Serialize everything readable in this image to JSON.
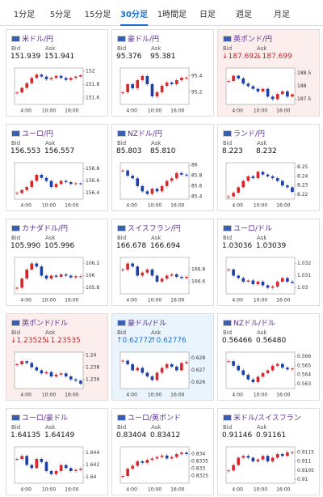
{
  "tabs": [
    "1分足",
    "5分足",
    "15分足",
    "30分足",
    "1時間足",
    "日足",
    "週足",
    "月足"
  ],
  "active_tab": 3,
  "bid_label": "Bid",
  "ask_label": "Ask",
  "time_ticks": [
    "4:00",
    "10:00",
    "16:00"
  ],
  "cards": [
    {
      "name": "米ドル/円",
      "bid": "151.939",
      "ask": "151.941",
      "trend": "none",
      "ylim": [
        151.5,
        152.05
      ],
      "yticks": [
        152,
        151.8,
        151.6
      ],
      "closes": [
        151.68,
        151.75,
        151.82,
        151.9,
        151.95,
        151.92,
        151.88,
        151.9,
        151.93,
        151.9,
        151.87,
        151.9,
        151.92,
        151.94
      ]
    },
    {
      "name": "豪ドル/円",
      "bid": "95.376",
      "ask": "95.381",
      "trend": "none",
      "ylim": [
        95.05,
        95.5
      ],
      "yticks": [
        95.4,
        95.2
      ],
      "closes": [
        95.2,
        95.3,
        95.25,
        95.35,
        95.4,
        95.3,
        95.15,
        95.2,
        95.28,
        95.32,
        95.3,
        95.35,
        95.38,
        95.38
      ]
    },
    {
      "name": "英ポンド/円",
      "bid": "187.692",
      "ask": "187.699",
      "trend": "down",
      "ylim": [
        187.3,
        188.7
      ],
      "yticks": [
        188.5,
        188,
        187.5
      ],
      "closes": [
        188.2,
        188.4,
        188.3,
        188.1,
        188.0,
        187.9,
        187.8,
        187.9,
        187.6,
        187.5,
        187.7,
        187.8,
        187.6,
        187.69
      ]
    },
    {
      "name": "ユーロ/円",
      "bid": "156.553",
      "ask": "156.557",
      "trend": "none",
      "ylim": [
        156.3,
        156.9
      ],
      "yticks": [
        156.8,
        156.6,
        156.4
      ],
      "closes": [
        156.4,
        156.45,
        156.5,
        156.6,
        156.7,
        156.65,
        156.6,
        156.5,
        156.55,
        156.6,
        156.58,
        156.55,
        156.56,
        156.55
      ]
    },
    {
      "name": "NZドル/円",
      "bid": "85.803",
      "ask": "85.810",
      "trend": "none",
      "ylim": [
        85.35,
        86.05
      ],
      "yticks": [
        86,
        85.8,
        85.6,
        85.4
      ],
      "closes": [
        85.9,
        85.8,
        85.75,
        85.6,
        85.5,
        85.45,
        85.55,
        85.5,
        85.6,
        85.7,
        85.75,
        85.85,
        85.82,
        85.81
      ]
    },
    {
      "name": "ランド/円",
      "bid": "8.223",
      "ask": "8.232",
      "trend": "none",
      "ylim": [
        8.215,
        8.255
      ],
      "yticks": [
        8.25,
        8.24,
        8.23,
        8.22
      ],
      "closes": [
        8.218,
        8.222,
        8.228,
        8.235,
        8.24,
        8.238,
        8.245,
        8.242,
        8.24,
        8.238,
        8.235,
        8.23,
        8.228,
        8.223
      ]
    },
    {
      "name": "カナダドル/円",
      "bid": "105.990",
      "ask": "105.996",
      "trend": "none",
      "ylim": [
        105.7,
        106.3
      ],
      "yticks": [
        106.2,
        106,
        105.8
      ],
      "closes": [
        105.8,
        105.95,
        106.1,
        106.2,
        106.15,
        106.0,
        105.95,
        106.0,
        105.98,
        106.02,
        106.0,
        105.97,
        105.99,
        105.99
      ]
    },
    {
      "name": "スイスフラン/円",
      "bid": "166.678",
      "ask": "166.694",
      "trend": "none",
      "ylim": [
        166.4,
        167
      ],
      "yticks": [
        166.8,
        166.6
      ],
      "closes": [
        166.8,
        166.9,
        166.85,
        166.7,
        166.75,
        166.8,
        166.7,
        166.6,
        166.65,
        166.7,
        166.72,
        166.68,
        166.66,
        166.68
      ]
    },
    {
      "name": "ユーロ/ドル",
      "bid": "1.03036",
      "ask": "1.03039",
      "trend": "none",
      "ylim": [
        1.0295,
        1.0325
      ],
      "yticks": [
        1.032,
        1.031,
        1.03
      ],
      "closes": [
        1.0315,
        1.031,
        1.0308,
        1.0305,
        1.0306,
        1.0303,
        1.0305,
        1.0302,
        1.03,
        1.0301,
        1.0305,
        1.0308,
        1.0305,
        1.0304
      ]
    },
    {
      "name": "英ポンド/ドル",
      "bid": "1.23525",
      "ask": "1.23535",
      "trend": "down",
      "ylim": [
        1.2345,
        1.2405
      ],
      "yticks": [
        1.24,
        1.238,
        1.236
      ],
      "closes": [
        1.2385,
        1.239,
        1.2387,
        1.238,
        1.2375,
        1.237,
        1.2372,
        1.2365,
        1.2368,
        1.237,
        1.2365,
        1.236,
        1.2358,
        1.2353
      ]
    },
    {
      "name": "豪ドル/ドル",
      "bid": "0.62772",
      "ask": "0.62776",
      "trend": "up",
      "ylim": [
        0.6255,
        0.6285
      ],
      "yticks": [
        0.628,
        0.627,
        0.626
      ],
      "closes": [
        0.6278,
        0.6275,
        0.627,
        0.6272,
        0.6268,
        0.6265,
        0.6262,
        0.6268,
        0.6272,
        0.6275,
        0.6273,
        0.627,
        0.6276,
        0.6277
      ]
    },
    {
      "name": "NZドル/ドル",
      "bid": "0.56466",
      "ask": "0.56480",
      "trend": "none",
      "ylim": [
        0.5625,
        0.5665
      ],
      "yticks": [
        0.566,
        0.565,
        0.564,
        0.563
      ],
      "closes": [
        0.5655,
        0.565,
        0.5645,
        0.564,
        0.5635,
        0.5632,
        0.5638,
        0.5642,
        0.5645,
        0.565,
        0.5652,
        0.5648,
        0.5646,
        0.5647
      ]
    },
    {
      "name": "ユーロ/豪ドル",
      "bid": "1.64135",
      "ask": "1.64149",
      "trend": "none",
      "ylim": [
        1.639,
        1.645
      ],
      "yticks": [
        1.644,
        1.642,
        1.64
      ],
      "closes": [
        1.643,
        1.6435,
        1.642,
        1.6415,
        1.643,
        1.6425,
        1.641,
        1.6405,
        1.641,
        1.642,
        1.6415,
        1.641,
        1.6412,
        1.6414
      ]
    },
    {
      "name": "ユーロ/英ポンド",
      "bid": "0.83404",
      "ask": "0.83412",
      "trend": "none",
      "ylim": [
        0.832,
        0.8345
      ],
      "yticks": [
        0.834,
        0.8335,
        0.833,
        0.8325
      ],
      "closes": [
        0.8325,
        0.833,
        0.8332,
        0.8335,
        0.8334,
        0.8336,
        0.8337,
        0.8338,
        0.8339,
        0.8337,
        0.8338,
        0.834,
        0.8341,
        0.834
      ]
    },
    {
      "name": "米ドル/スイスフラン",
      "bid": "0.91146",
      "ask": "0.91161",
      "trend": "none",
      "ylim": [
        0.9098,
        0.9118
      ],
      "yticks": [
        0.9115,
        0.911,
        0.9105,
        0.91
      ],
      "closes": [
        0.9105,
        0.9108,
        0.9112,
        0.9113,
        0.9112,
        0.911,
        0.9111,
        0.9113,
        0.911,
        0.9112,
        0.9114,
        0.9113,
        0.9115,
        0.9115
      ]
    }
  ]
}
